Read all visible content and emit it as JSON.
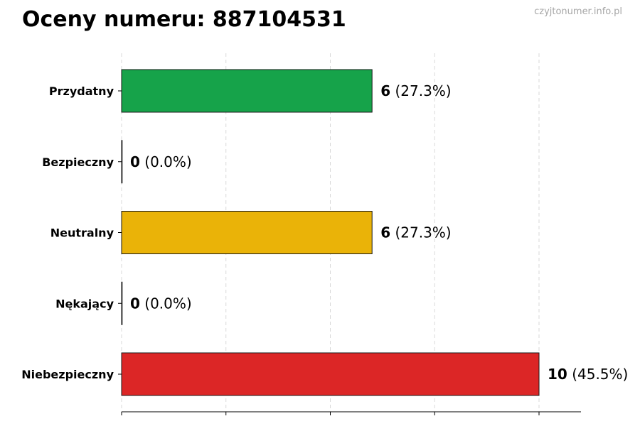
{
  "header": {
    "title": "Oceny numeru: 887104531",
    "watermark": "czyjtonumer.info.pl"
  },
  "chart_data": {
    "type": "bar",
    "orientation": "horizontal",
    "title": "Oceny numeru: 887104531",
    "xlabel": "",
    "ylabel": "",
    "xlim": [
      0,
      11
    ],
    "grid": true,
    "categories": [
      "Przydatny",
      "Bezpieczny",
      "Neutralny",
      "Nękający",
      "Niebezpieczny"
    ],
    "values": [
      6,
      0,
      6,
      0,
      10
    ],
    "percent_labels": [
      "(27.3%)",
      "(0.0%)",
      "(27.3%)",
      "(0.0%)",
      "(45.5%)"
    ],
    "colors": [
      "#16a34a",
      "#16a34a",
      "#eab308",
      "#dc2626",
      "#dc2626"
    ]
  }
}
